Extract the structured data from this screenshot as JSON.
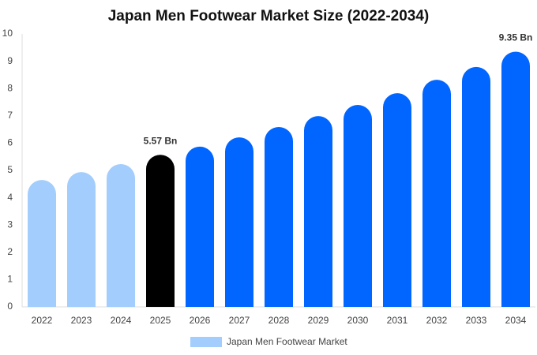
{
  "chart_data": {
    "type": "bar",
    "title": "Japan Men Footwear Market Size (2022-2034)",
    "categories": [
      "2022",
      "2023",
      "2024",
      "2025",
      "2026",
      "2027",
      "2028",
      "2029",
      "2030",
      "2031",
      "2032",
      "2033",
      "2034"
    ],
    "series": [
      {
        "name": "Japan Men Footwear Market",
        "color": "#a3cdfc",
        "values": [
          4.65,
          4.94,
          5.23,
          5.57,
          5.87,
          6.21,
          6.59,
          6.99,
          7.4,
          7.83,
          8.32,
          8.79,
          9.35
        ],
        "value_labels": [
          null,
          null,
          null,
          "5.57 Bn",
          null,
          null,
          null,
          null,
          null,
          null,
          null,
          null,
          "9.35 Bn"
        ],
        "colors": [
          "#a3cdfc",
          "#a3cdfc",
          "#a3cdfc",
          "#000000",
          "#0066ff",
          "#0066ff",
          "#0066ff",
          "#0066ff",
          "#0066ff",
          "#0066ff",
          "#0066ff",
          "#0066ff",
          "#0066ff"
        ]
      }
    ],
    "ylim": [
      0,
      10
    ],
    "yticks": [
      0,
      1,
      2,
      3,
      4,
      5,
      6,
      7,
      8,
      9,
      10
    ],
    "grid": false
  }
}
